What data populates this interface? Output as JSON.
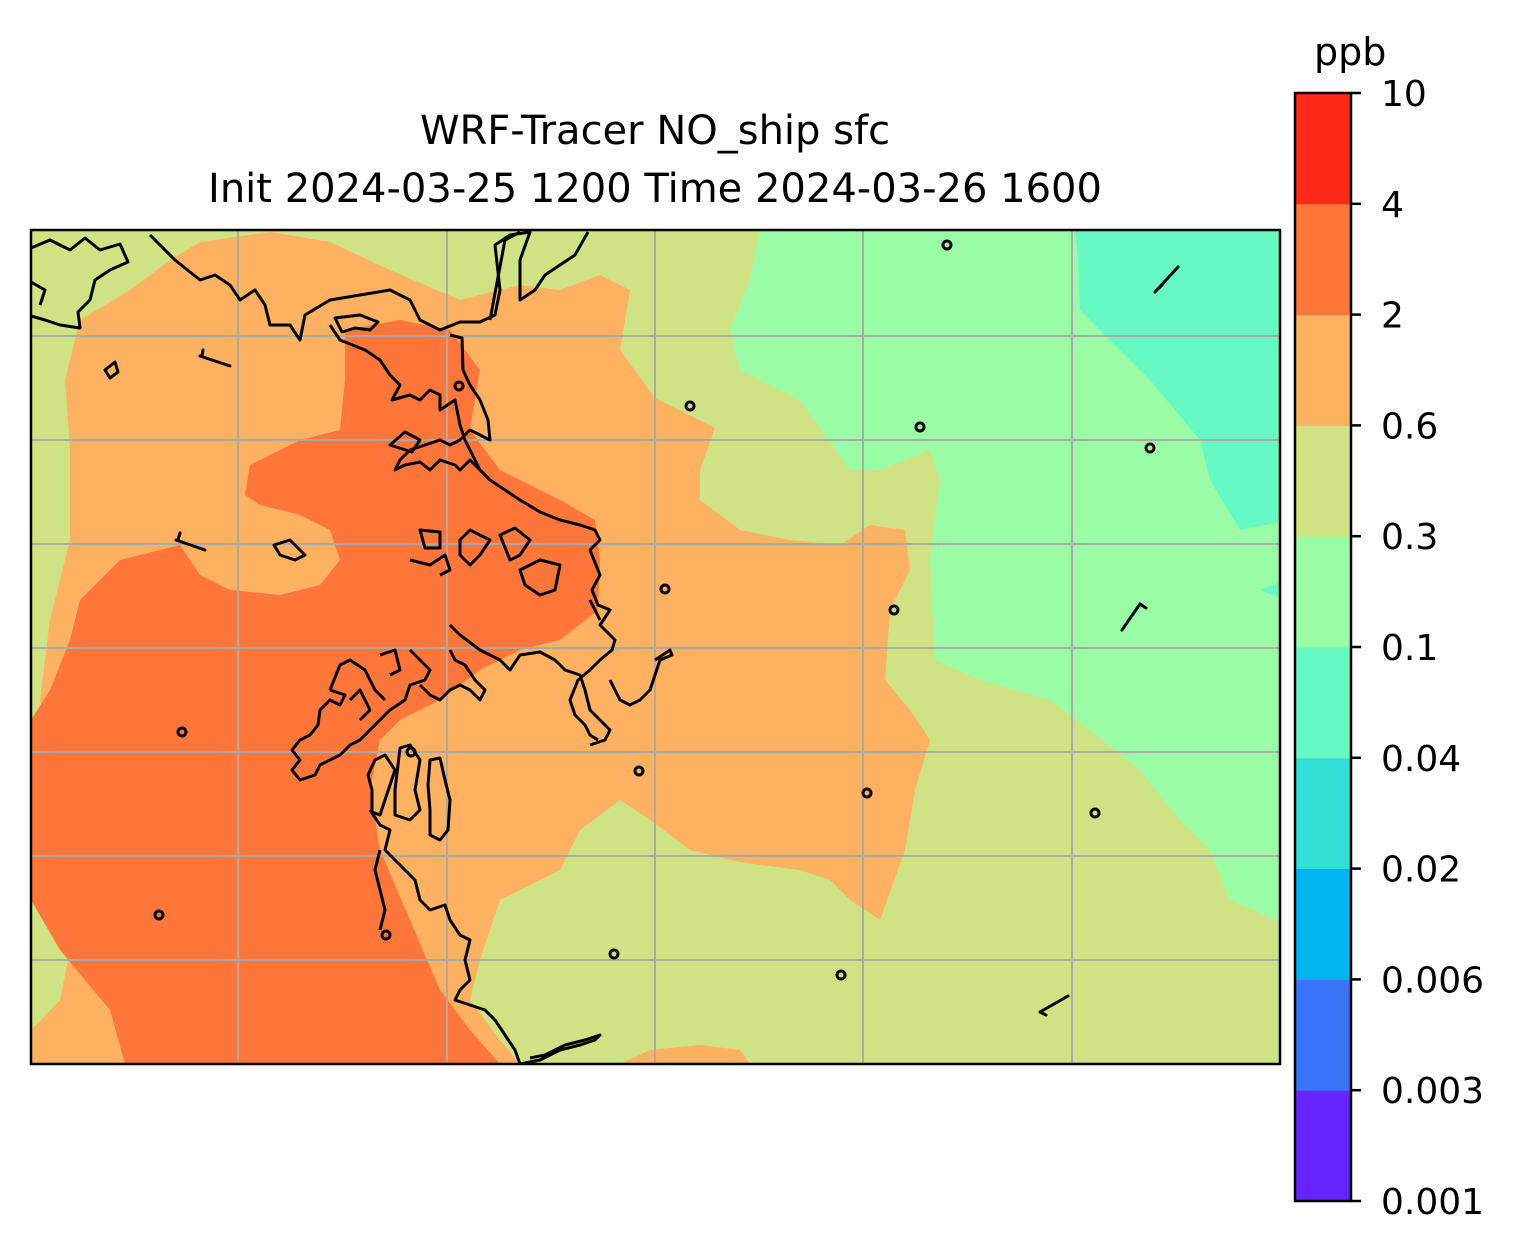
{
  "title_line1": "WRF-Tracer NO_ship sfc",
  "title_line2": "Init 2024-03-25 1200 Time 2024-03-26 1600",
  "colorbar": {
    "units": "ppb",
    "levels": [
      "0.001",
      "0.003",
      "0.006",
      "0.02",
      "0.04",
      "0.1",
      "0.3",
      "0.6",
      "2",
      "4",
      "10"
    ],
    "colors": [
      "#6625ff",
      "#3a74f6",
      "#00b4ee",
      "#33e0d6",
      "#66f9c3",
      "#9afda6",
      "#cfe384",
      "#feb160",
      "#fe763a",
      "#ff2917"
    ]
  },
  "map": {
    "variable": "NO_ship",
    "level": "sfc",
    "field_classes_present": [
      "0.1-0.3",
      "0.3-0.6",
      "0.6-2",
      "2-4"
    ],
    "overlays": [
      "coastlines",
      "gridlines",
      "wind barbs",
      "calm-wind circles"
    ],
    "axes_ticks_shown": false
  }
}
